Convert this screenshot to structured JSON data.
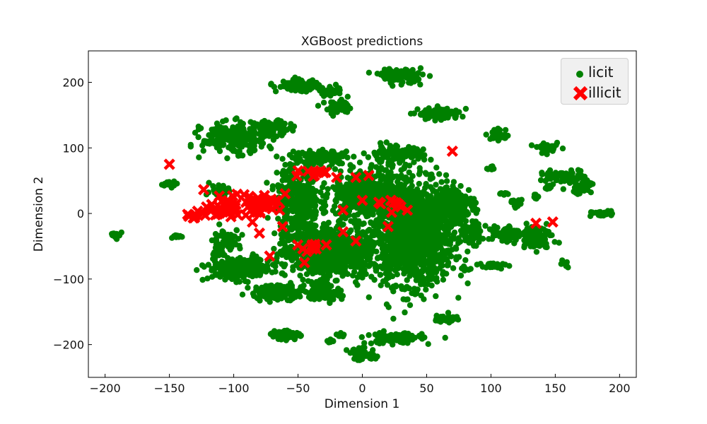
{
  "chart_data": {
    "type": "scatter",
    "title": "XGBoost predictions",
    "xlabel": "Dimension 1",
    "ylabel": "Dimension 2",
    "xlim": [
      -213,
      213
    ],
    "ylim": [
      -250,
      248
    ],
    "xticks": [
      -200,
      -150,
      -100,
      -50,
      0,
      50,
      100,
      150,
      200
    ],
    "yticks": [
      -200,
      -100,
      0,
      100,
      200
    ],
    "legend_position": "top-right",
    "series": [
      {
        "name": "licit",
        "color": "#008000",
        "marker": "circle",
        "clusters": [
          {
            "cx": 40,
            "cy": -30,
            "rx": 28,
            "ry": 70,
            "n": 1400
          },
          {
            "cx": 5,
            "cy": 30,
            "rx": 25,
            "ry": 35,
            "n": 500
          },
          {
            "cx": -35,
            "cy": -60,
            "rx": 25,
            "ry": 35,
            "n": 500
          },
          {
            "cx": -50,
            "cy": 20,
            "rx": 15,
            "ry": 55,
            "n": 350
          },
          {
            "cx": -10,
            "cy": -60,
            "rx": 25,
            "ry": 30,
            "n": 300
          },
          {
            "cx": -95,
            "cy": -85,
            "rx": 22,
            "ry": 15,
            "n": 250
          },
          {
            "cx": -100,
            "cy": 115,
            "rx": 22,
            "ry": 20,
            "n": 250
          },
          {
            "cx": -70,
            "cy": 130,
            "rx": 12,
            "ry": 10,
            "n": 80
          },
          {
            "cx": -65,
            "cy": -120,
            "rx": 20,
            "ry": 10,
            "n": 150
          },
          {
            "cx": -30,
            "cy": -120,
            "rx": 12,
            "ry": 12,
            "n": 80
          },
          {
            "cx": 70,
            "cy": 10,
            "rx": 15,
            "ry": 30,
            "n": 200
          },
          {
            "cx": 85,
            "cy": -30,
            "rx": 8,
            "ry": 15,
            "n": 60
          },
          {
            "cx": 25,
            "cy": 90,
            "rx": 20,
            "ry": 12,
            "n": 120
          },
          {
            "cx": -30,
            "cy": 85,
            "rx": 20,
            "ry": 10,
            "n": 120
          },
          {
            "cx": -110,
            "cy": 35,
            "rx": 8,
            "ry": 10,
            "n": 40
          },
          {
            "cx": -105,
            "cy": -40,
            "rx": 10,
            "ry": 15,
            "n": 60
          },
          {
            "cx": -110,
            "cy": -60,
            "rx": 5,
            "ry": 5,
            "n": 20
          },
          {
            "cx": 60,
            "cy": 152,
            "rx": 15,
            "ry": 8,
            "n": 100
          },
          {
            "cx": 30,
            "cy": 210,
            "rx": 15,
            "ry": 10,
            "n": 100
          },
          {
            "cx": -25,
            "cy": 185,
            "rx": 8,
            "ry": 6,
            "n": 30
          },
          {
            "cx": -50,
            "cy": 195,
            "rx": 15,
            "ry": 8,
            "n": 90
          },
          {
            "cx": -18,
            "cy": 160,
            "rx": 10,
            "ry": 10,
            "n": 50
          },
          {
            "cx": 25,
            "cy": -190,
            "rx": 20,
            "ry": 8,
            "n": 100
          },
          {
            "cx": 0,
            "cy": -215,
            "rx": 10,
            "ry": 8,
            "n": 60
          },
          {
            "cx": -60,
            "cy": -185,
            "rx": 10,
            "ry": 7,
            "n": 50
          },
          {
            "cx": -15,
            "cy": -185,
            "rx": 3,
            "ry": 3,
            "n": 10
          },
          {
            "cx": -25,
            "cy": -195,
            "rx": 3,
            "ry": 3,
            "n": 10
          },
          {
            "cx": 65,
            "cy": -160,
            "rx": 8,
            "ry": 6,
            "n": 40
          },
          {
            "cx": 105,
            "cy": 120,
            "rx": 8,
            "ry": 8,
            "n": 40
          },
          {
            "cx": 145,
            "cy": 100,
            "rx": 8,
            "ry": 6,
            "n": 30
          },
          {
            "cx": 155,
            "cy": 55,
            "rx": 15,
            "ry": 8,
            "n": 60
          },
          {
            "cx": 170,
            "cy": 45,
            "rx": 8,
            "ry": 15,
            "n": 50
          },
          {
            "cx": 185,
            "cy": 0,
            "rx": 8,
            "ry": 4,
            "n": 30
          },
          {
            "cx": 135,
            "cy": -35,
            "rx": 12,
            "ry": 15,
            "n": 100
          },
          {
            "cx": 110,
            "cy": -30,
            "rx": 12,
            "ry": 12,
            "n": 70
          },
          {
            "cx": 100,
            "cy": -80,
            "rx": 10,
            "ry": 6,
            "n": 30
          },
          {
            "cx": 135,
            "cy": 25,
            "rx": 3,
            "ry": 3,
            "n": 10
          },
          {
            "cx": 145,
            "cy": 40,
            "rx": 3,
            "ry": 3,
            "n": 10
          },
          {
            "cx": 100,
            "cy": 70,
            "rx": 3,
            "ry": 3,
            "n": 10
          },
          {
            "cx": 120,
            "cy": 15,
            "rx": 5,
            "ry": 8,
            "n": 15
          },
          {
            "cx": 110,
            "cy": 30,
            "rx": 3,
            "ry": 3,
            "n": 8
          },
          {
            "cx": -150,
            "cy": 45,
            "rx": 5,
            "ry": 4,
            "n": 20
          },
          {
            "cx": -190,
            "cy": -33,
            "rx": 5,
            "ry": 4,
            "n": 20
          },
          {
            "cx": -143,
            "cy": -35,
            "rx": 4,
            "ry": 3,
            "n": 10
          },
          {
            "cx": 158,
            "cy": -78,
            "rx": 3,
            "ry": 4,
            "n": 8
          },
          {
            "cx": 80,
            "cy": -85,
            "rx": 3,
            "ry": 3,
            "n": 8
          }
        ]
      },
      {
        "name": "illicit",
        "color": "#ff0000",
        "marker": "x",
        "clusters": [
          {
            "cx": -100,
            "cy": 10,
            "rx": 18,
            "ry": 15,
            "n": 60
          },
          {
            "cx": -75,
            "cy": 15,
            "rx": 10,
            "ry": 10,
            "n": 25
          },
          {
            "cx": -130,
            "cy": -3,
            "rx": 8,
            "ry": 5,
            "n": 10
          },
          {
            "cx": -40,
            "cy": -50,
            "rx": 8,
            "ry": 6,
            "n": 10
          },
          {
            "cx": -38,
            "cy": 60,
            "rx": 10,
            "ry": 10,
            "n": 8
          },
          {
            "cx": 25,
            "cy": 15,
            "rx": 10,
            "ry": 10,
            "n": 8
          }
        ],
        "points": [
          [
            -150,
            75
          ],
          [
            -72,
            -65
          ],
          [
            -45,
            -75
          ],
          [
            -15,
            -28
          ],
          [
            -15,
            5
          ],
          [
            0,
            20
          ],
          [
            -5,
            -42
          ],
          [
            -28,
            -48
          ],
          [
            135,
            -15
          ],
          [
            148,
            -13
          ],
          [
            70,
            95
          ],
          [
            -62,
            -20
          ],
          [
            -50,
            65
          ],
          [
            -30,
            62
          ],
          [
            -20,
            55
          ],
          [
            -5,
            55
          ],
          [
            5,
            58
          ],
          [
            20,
            -20
          ],
          [
            30,
            10
          ],
          [
            35,
            5
          ],
          [
            -80,
            -30
          ],
          [
            -60,
            30
          ]
        ]
      }
    ]
  }
}
